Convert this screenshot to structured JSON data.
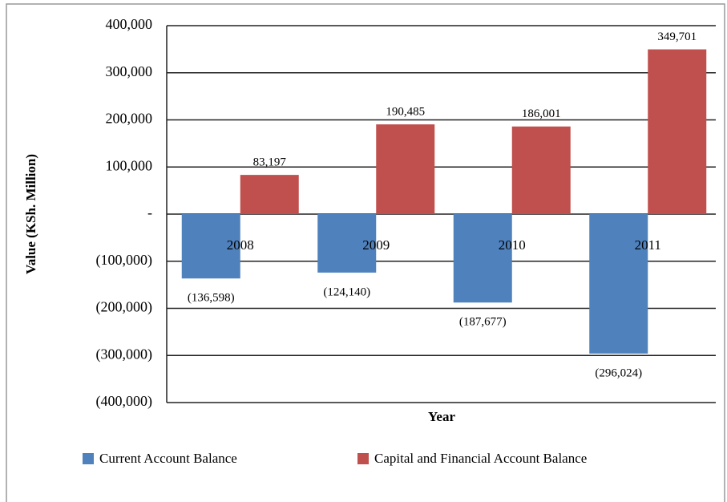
{
  "chart_data": {
    "type": "bar",
    "y_label": "Value (KSh. Million)",
    "x_label": "Year",
    "categories": [
      "2008",
      "2009",
      "2010",
      "2011"
    ],
    "series": [
      {
        "name": "Current Account Balance",
        "color": "#4f81bd",
        "values": [
          -136598,
          -124140,
          -187677,
          -296024
        ],
        "value_labels": [
          "(136,598)",
          "(124,140)",
          "(187,677)",
          "(296,024)"
        ]
      },
      {
        "name": "Capital and Financial Account Balance",
        "color": "#c0504d",
        "values": [
          83197,
          190485,
          186001,
          349701
        ],
        "value_labels": [
          "83,197",
          "190,485",
          "186,001",
          "349,701"
        ]
      }
    ],
    "ylim": [
      -400000,
      400000
    ],
    "yticks": [
      {
        "value": 400000,
        "label": "400,000"
      },
      {
        "value": 300000,
        "label": "300,000"
      },
      {
        "value": 200000,
        "label": "200,000"
      },
      {
        "value": 100000,
        "label": "100,000"
      },
      {
        "value": 0,
        "label": "-"
      },
      {
        "value": -100000,
        "label": "(100,000)"
      },
      {
        "value": -200000,
        "label": "(200,000)"
      },
      {
        "value": -300000,
        "label": "(300,000)"
      },
      {
        "value": -400000,
        "label": "(400,000)"
      }
    ],
    "grid": true,
    "legend": "bottom"
  }
}
